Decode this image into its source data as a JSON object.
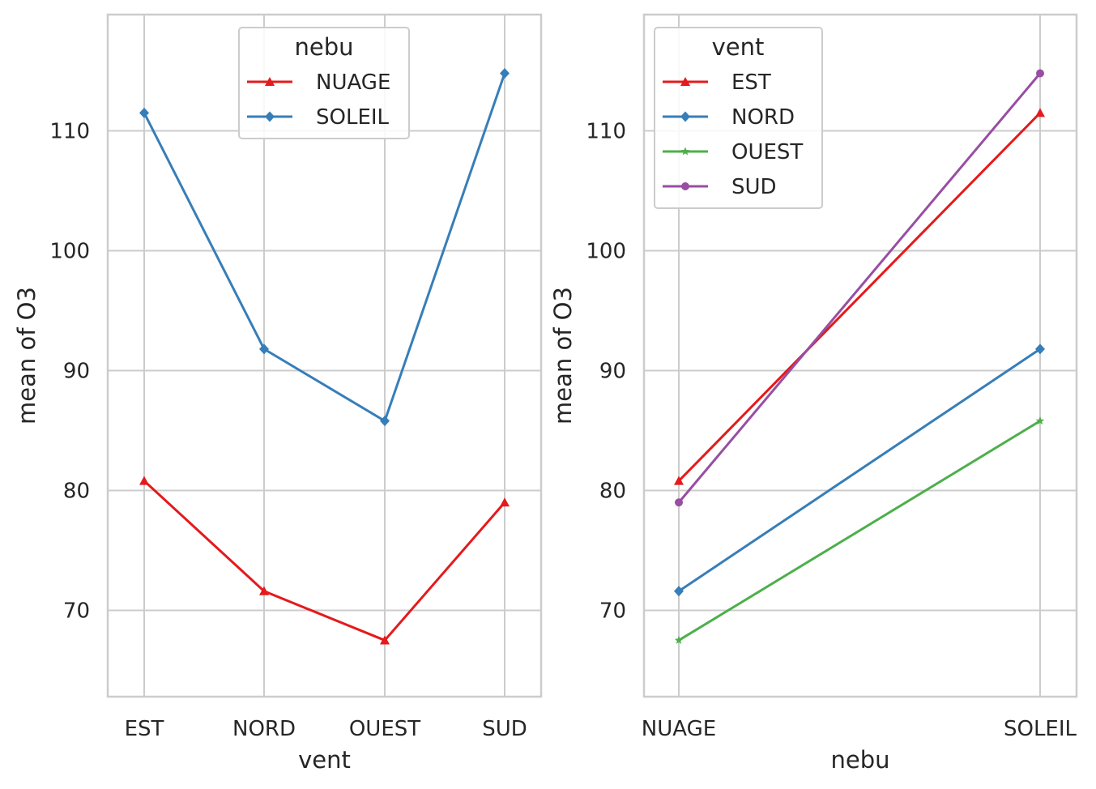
{
  "chart_data": [
    {
      "type": "line",
      "xlabel": "vent",
      "ylabel": "mean of O3",
      "categories": [
        "EST",
        "NORD",
        "OUEST",
        "SUD"
      ],
      "ylim": [
        62.8,
        119.7
      ],
      "yticks": [
        70,
        80,
        90,
        100,
        110
      ],
      "grid": true,
      "legend": {
        "title": "nebu",
        "placement": "top-center"
      },
      "series": [
        {
          "name": "NUAGE",
          "color": "#e41a1c",
          "marker": "triangle",
          "values": [
            80.8,
            71.6,
            67.5,
            79.0
          ]
        },
        {
          "name": "SOLEIL",
          "color": "#377eb8",
          "marker": "diamond",
          "values": [
            111.5,
            91.8,
            85.8,
            114.8
          ]
        }
      ]
    },
    {
      "type": "line",
      "xlabel": "nebu",
      "ylabel": "mean of O3",
      "categories": [
        "NUAGE",
        "SOLEIL"
      ],
      "ylim": [
        62.8,
        119.7
      ],
      "yticks": [
        70,
        80,
        90,
        100,
        110
      ],
      "grid": true,
      "legend": {
        "title": "vent",
        "placement": "top-left"
      },
      "series": [
        {
          "name": "EST",
          "color": "#e41a1c",
          "marker": "triangle",
          "values": [
            80.8,
            111.5
          ]
        },
        {
          "name": "NORD",
          "color": "#377eb8",
          "marker": "diamond",
          "values": [
            71.6,
            91.8
          ]
        },
        {
          "name": "OUEST",
          "color": "#4daf4a",
          "marker": "star",
          "values": [
            67.5,
            85.8
          ]
        },
        {
          "name": "SUD",
          "color": "#984ea3",
          "marker": "circle",
          "values": [
            79.0,
            114.8
          ]
        }
      ]
    }
  ]
}
